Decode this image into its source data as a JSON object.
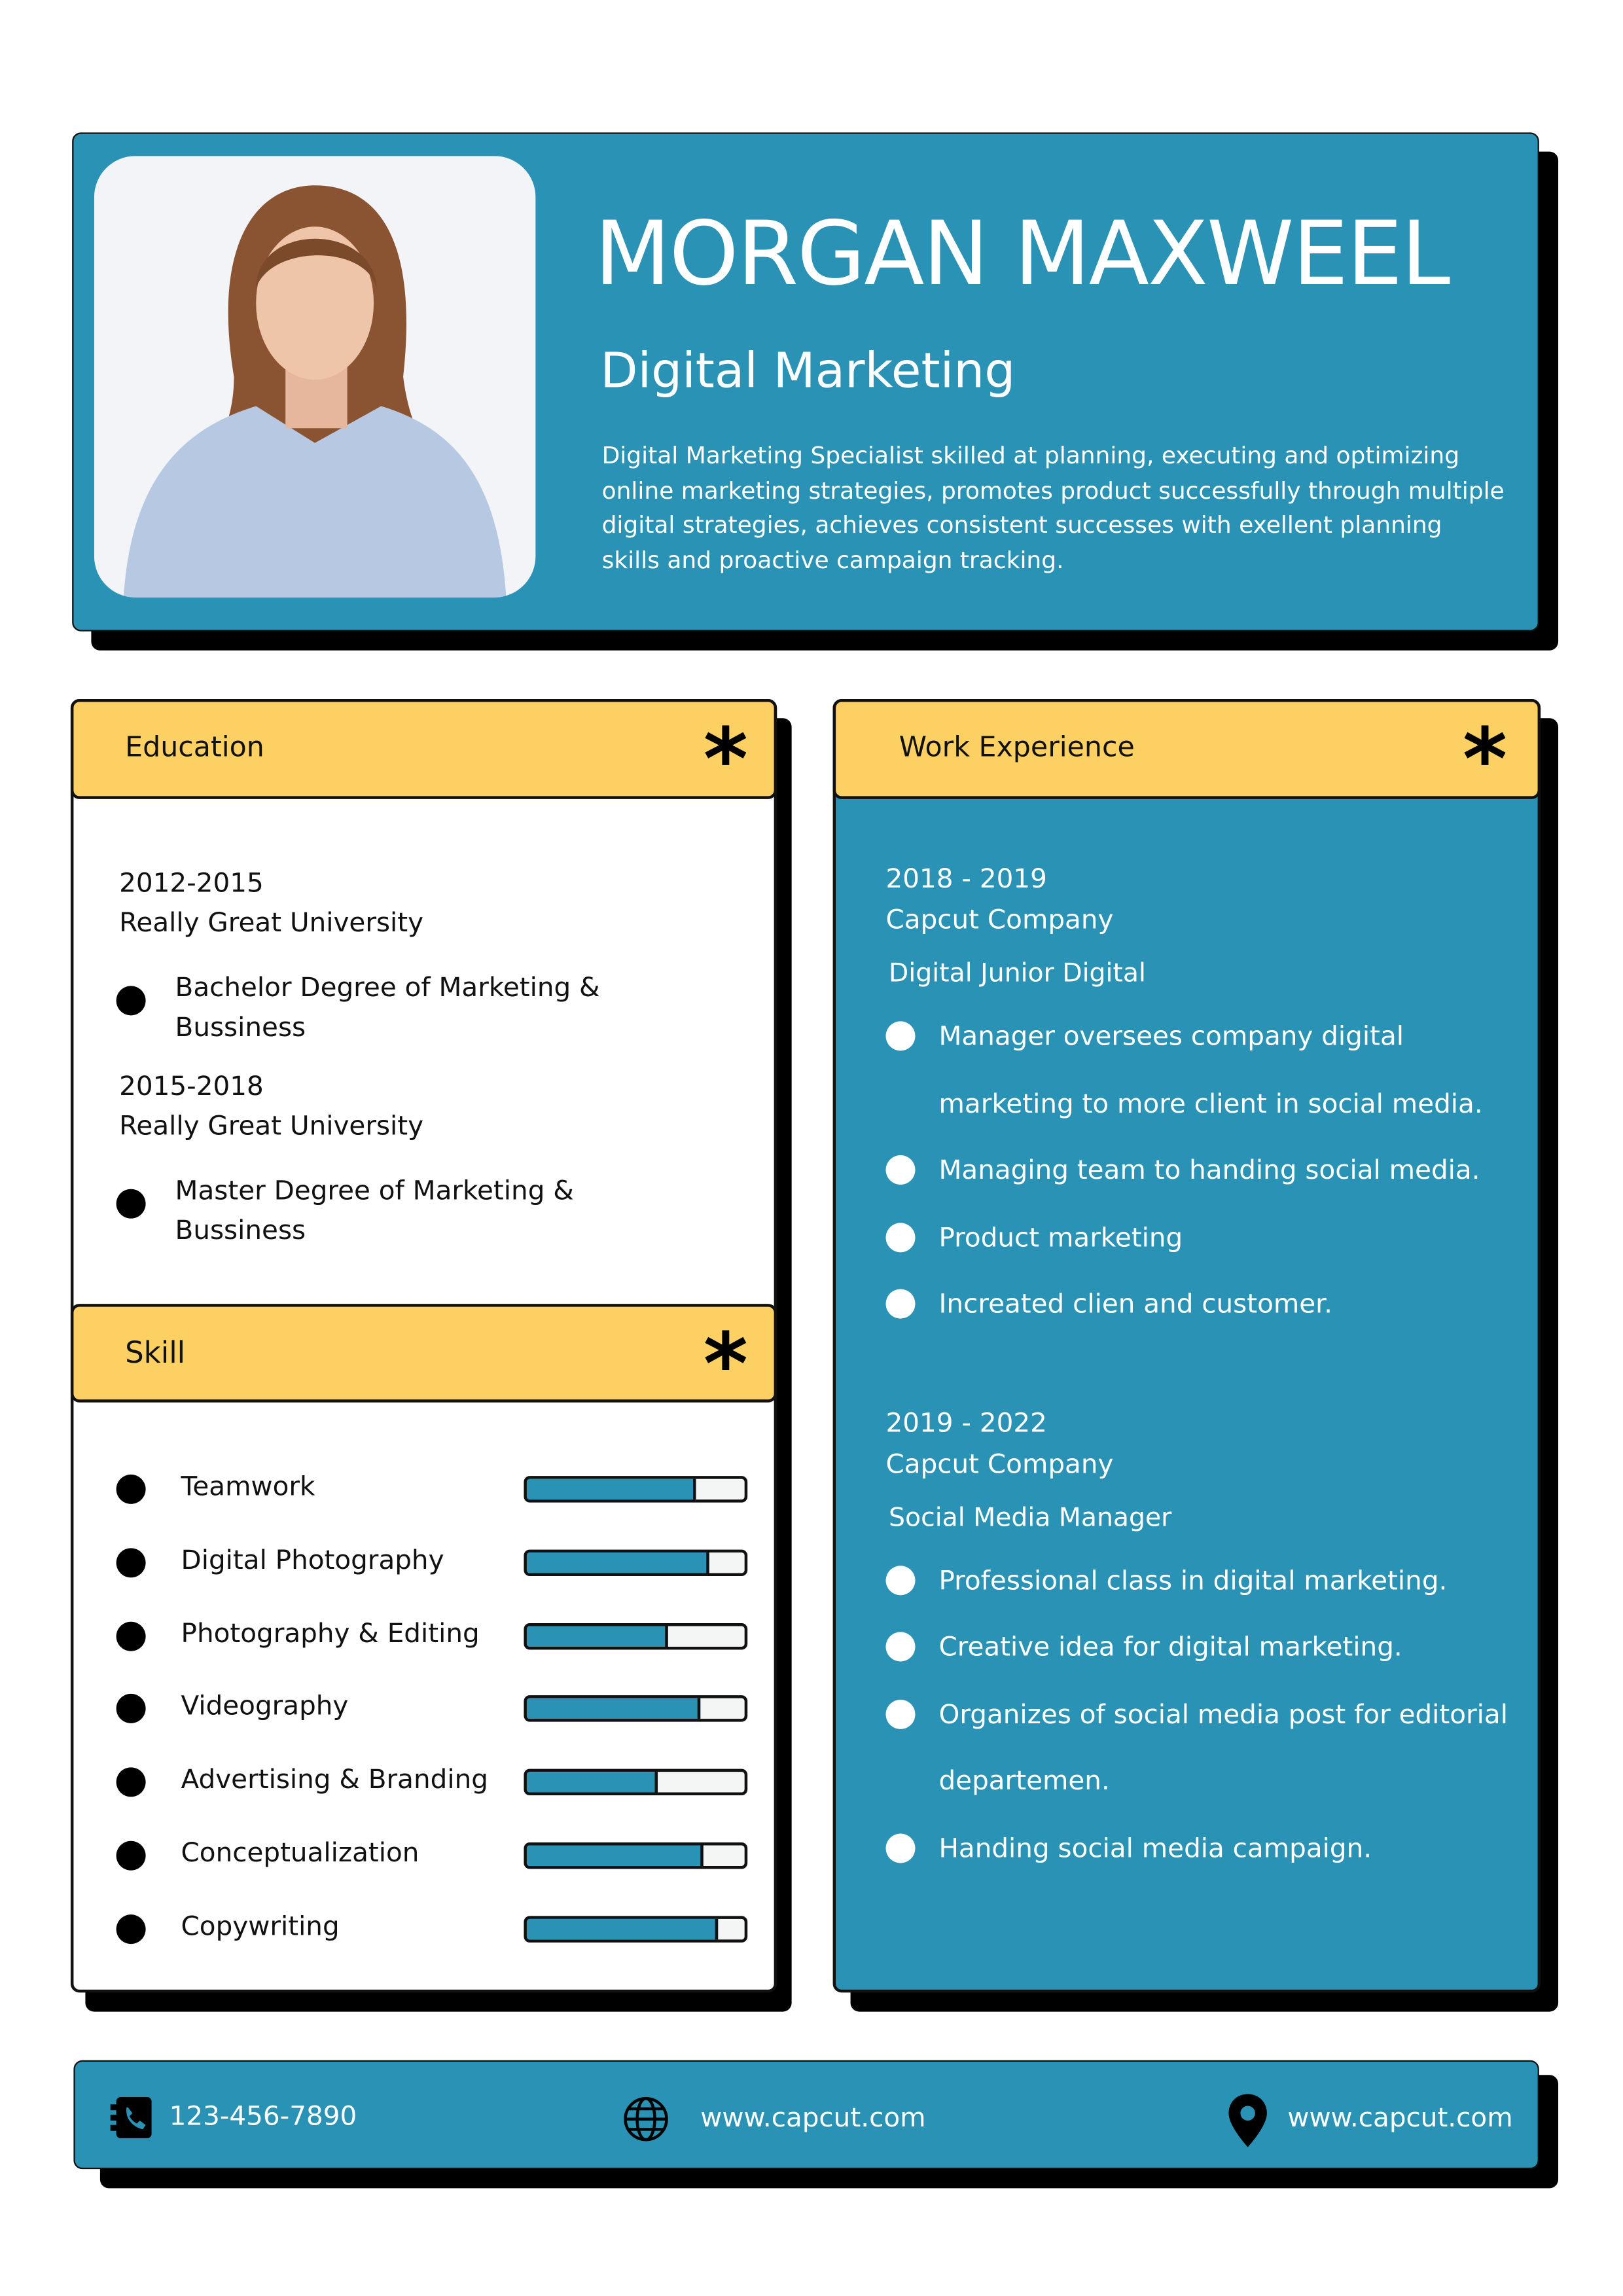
{
  "header": {
    "name": "MORGAN MAXWEEL",
    "title": "Digital Marketing",
    "summary": "Digital Marketing Specialist skilled at planning, executing and optimizing online marketing strategies, promotes product successfully through multiple digital strategies, achieves consistent successes with exellent planning skills and proactive campaign tracking."
  },
  "education": {
    "heading": "Education",
    "entries": [
      {
        "years": "2012-2015",
        "school": "Really Great University",
        "degree": "Bachelor Degree of Marketing & Bussiness"
      },
      {
        "years": "2015-2018",
        "school": "Really Great University",
        "degree": "Master Degree of Marketing & Bussiness"
      }
    ]
  },
  "skills": {
    "heading": "Skill",
    "items": [
      {
        "name": "Teamwork",
        "level": 78
      },
      {
        "name": "Digital Photography",
        "level": 84
      },
      {
        "name": "Photography & Editing",
        "level": 65
      },
      {
        "name": "Videography",
        "level": 80
      },
      {
        "name": "Advertising & Branding",
        "level": 60
      },
      {
        "name": "Conceptualization",
        "level": 81
      },
      {
        "name": "Copywriting",
        "level": 88
      }
    ]
  },
  "experience": {
    "heading": "Work Experience",
    "entries": [
      {
        "years": "2018 - 2019",
        "company": "Capcut Company",
        "role": "Digital Junior Digital",
        "points": [
          "Manager oversees company digital marketing to more client in social media.",
          "Managing team to handing social media.",
          "Product marketing",
          "Increated clien and customer."
        ]
      },
      {
        "years": "2019 - 2022",
        "company": "Capcut Company",
        "role": "Social Media Manager",
        "points": [
          "Professional class in digital marketing.",
          "Creative idea for digital marketing.",
          "Organizes of social media post for editorial departemen.",
          "Handing social media campaign."
        ]
      }
    ]
  },
  "footer": {
    "phone": "123-456-7890",
    "website": "www.capcut.com",
    "location": "www.capcut.com"
  }
}
